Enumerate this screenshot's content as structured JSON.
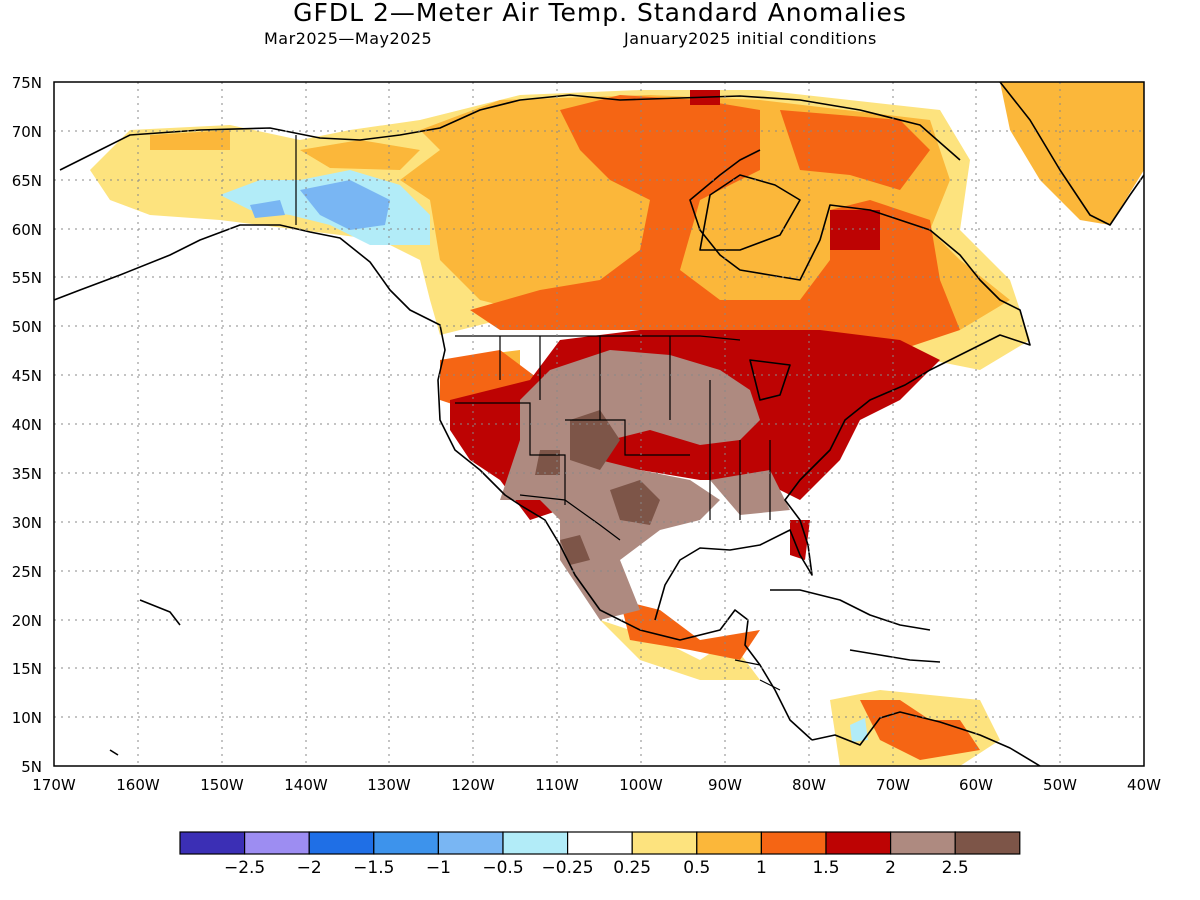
{
  "header": {
    "title": "GFDL 2—Meter Air Temp. Standard Anomalies",
    "period": "Mar2025—May2025",
    "init": "January2025 initial conditions"
  },
  "axes": {
    "lat_labels": [
      "75N",
      "70N",
      "65N",
      "60N",
      "55N",
      "50N",
      "45N",
      "40N",
      "35N",
      "30N",
      "25N",
      "20N",
      "15N",
      "10N",
      "5N"
    ],
    "lon_labels": [
      "170W",
      "160W",
      "150W",
      "140W",
      "130W",
      "120W",
      "110W",
      "100W",
      "90W",
      "80W",
      "70W",
      "60W",
      "50W",
      "40W"
    ]
  },
  "colorbar": {
    "labels": [
      "−2.5",
      "−2",
      "−1.5",
      "−1",
      "−0.5",
      "−0.25",
      "0.25",
      "0.5",
      "1",
      "1.5",
      "2",
      "2.5"
    ],
    "colors": [
      "#3b2fb5",
      "#9d8df2",
      "#1f6fe6",
      "#3d93ec",
      "#79b6f3",
      "#b2ecf8",
      "#ffffff",
      "#fde37e",
      "#fbb73a",
      "#f56514",
      "#bd0303",
      "#ae8a80",
      "#7d5548"
    ]
  }
}
